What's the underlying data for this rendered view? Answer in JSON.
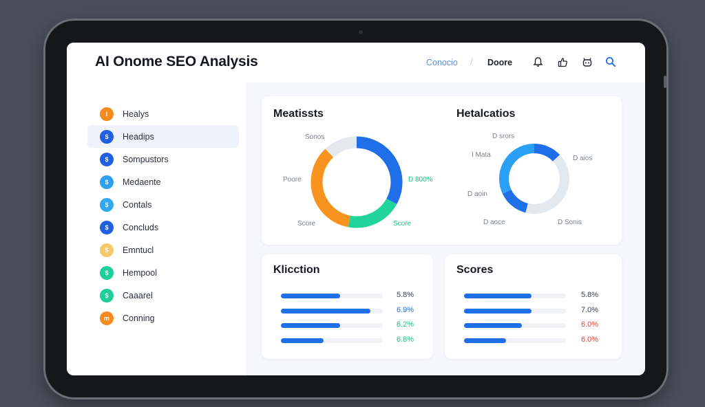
{
  "app": {
    "title": "AI Onome SEO Analysis",
    "nav_active": "Conocio",
    "nav_user": "Doore"
  },
  "top_icons": [
    "bell-icon",
    "thumbs-up-icon",
    "robot-icon",
    "search-icon"
  ],
  "sidebar": {
    "items": [
      {
        "label": "Healys",
        "badge": "I",
        "color": "#f58a1f"
      },
      {
        "label": "Headips",
        "badge": "$",
        "color": "#1f5fe0"
      },
      {
        "label": "Sompustors",
        "badge": "$",
        "color": "#1f5fe0"
      },
      {
        "label": "Medaente",
        "badge": "$",
        "color": "#2f9ff0"
      },
      {
        "label": "Contals",
        "badge": "$",
        "color": "#2fa8f0"
      },
      {
        "label": "Concluds",
        "badge": "$",
        "color": "#1f5fe0"
      },
      {
        "label": "Emntucl",
        "badge": "$",
        "color": "#f7c96b"
      },
      {
        "label": "Hempool",
        "badge": "$",
        "color": "#1fcf9a"
      },
      {
        "label": "Caaarel",
        "badge": "$",
        "color": "#1fcf9a"
      },
      {
        "label": "Conning",
        "badge": "m",
        "color": "#f58a1f"
      }
    ],
    "active_index": 1
  },
  "panels": {
    "metrics": {
      "title": "Meatissts",
      "labels": {
        "top": "Sonos",
        "left": "Poore",
        "right": "D 800%",
        "bottom_left": "Score",
        "bottom_right": "Score"
      }
    },
    "heat": {
      "title": "Hetalcatios",
      "labels": {
        "top": "D srors",
        "left": "I Mata",
        "right": "D aios",
        "mid_left": "D aoin",
        "bottom_left": "D aoce",
        "bottom_right": "D Sonis"
      }
    },
    "kliction": {
      "title": "Klicction",
      "rows": [
        {
          "value": "5.8%",
          "fill": 0.58,
          "value_color": "#3a4150"
        },
        {
          "value": "6.9%",
          "fill": 0.88,
          "value_color": "#1f6fe8"
        },
        {
          "value": "6.2%",
          "fill": 0.58,
          "value_color": "#19c08a"
        },
        {
          "value": "6.8%",
          "fill": 0.42,
          "value_color": "#19c08a"
        }
      ]
    },
    "scores": {
      "title": "Scores",
      "rows": [
        {
          "value": "5.8%",
          "fill": 0.66,
          "value_color": "#3a4150"
        },
        {
          "value": "7.0%",
          "fill": 0.66,
          "value_color": "#3a4150"
        },
        {
          "value": "6.0%",
          "fill": 0.57,
          "value_color": "#e0453a"
        },
        {
          "value": "6.0%",
          "fill": 0.41,
          "value_color": "#e0453a"
        }
      ]
    }
  },
  "chart_data": [
    {
      "type": "pie",
      "title": "Meatissts",
      "donut": true,
      "segments": [
        {
          "value": 33,
          "color": "#1f6fe8"
        },
        {
          "value": 20,
          "color": "#22d39a"
        },
        {
          "value": 35,
          "color": "#f7931e"
        },
        {
          "value": 12,
          "color": "#e3e7ee"
        }
      ]
    },
    {
      "type": "pie",
      "title": "Hetalcatios",
      "donut": true,
      "segments": [
        {
          "value": 13,
          "color": "#1f6fe8"
        },
        {
          "value": 41,
          "color": "#e3e7ee"
        },
        {
          "value": 14,
          "color": "#1f6fe8"
        },
        {
          "value": 32,
          "color": "#2b9ff5"
        }
      ]
    },
    {
      "type": "bar",
      "title": "Klicction",
      "values": [
        0.58,
        0.88,
        0.58,
        0.42
      ],
      "value_labels": [
        "5.8%",
        "6.9%",
        "6.2%",
        "6.8%"
      ]
    },
    {
      "type": "bar",
      "title": "Scores",
      "values": [
        0.66,
        0.66,
        0.57,
        0.41
      ],
      "value_labels": [
        "5.8%",
        "7.0%",
        "6.0%",
        "6.0%"
      ]
    }
  ]
}
